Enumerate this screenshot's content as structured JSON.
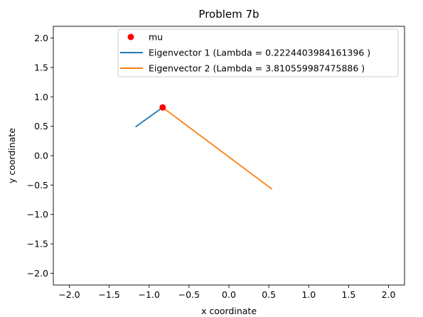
{
  "chart_data": {
    "type": "line",
    "title": "Problem 7b",
    "xlabel": "x coordinate",
    "ylabel": "y coordinate",
    "xlim": [
      -2.2,
      2.2
    ],
    "ylim": [
      -2.2,
      2.2
    ],
    "xticks": [
      "−2.0",
      "−1.5",
      "−1.0",
      "−0.5",
      "0.0",
      "0.5",
      "1.0",
      "1.5",
      "2.0"
    ],
    "xtick_values": [
      -2.0,
      -1.5,
      -1.0,
      -0.5,
      0.0,
      0.5,
      1.0,
      1.5,
      2.0
    ],
    "yticks": [
      "2.0",
      "1.5",
      "1.0",
      "0.5",
      "0.0",
      "−0.5",
      "−1.0",
      "−1.5",
      "−2.0"
    ],
    "ytick_values": [
      2.0,
      1.5,
      1.0,
      0.5,
      0.0,
      -0.5,
      -1.0,
      -1.5,
      -2.0
    ],
    "grid": false,
    "legend_position": "top-right",
    "mu": {
      "name": "mu",
      "x": -0.83,
      "y": 0.82,
      "color": "#ff0000"
    },
    "series": [
      {
        "name": "Eigenvector 1 (Lambda = 0.2224403984161396 )",
        "x": [
          -0.83,
          -1.17
        ],
        "y": [
          0.82,
          0.49
        ],
        "color": "#1f77b4"
      },
      {
        "name": "Eigenvector 2 (Lambda = 3.810559987475886 )",
        "x": [
          -0.83,
          0.54
        ],
        "y": [
          0.82,
          -0.57
        ],
        "color": "#ff7f0e"
      }
    ]
  }
}
